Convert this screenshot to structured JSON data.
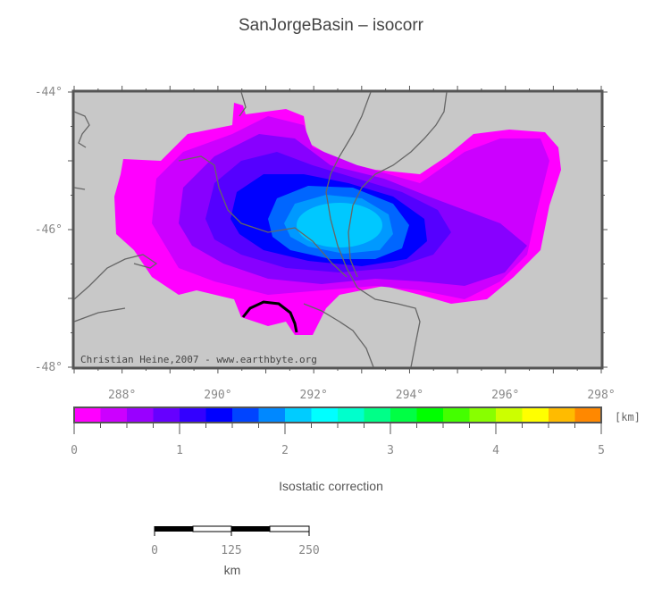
{
  "title": "SanJorgeBasin – isocorr",
  "credit": "Christian Heine,2007 - www.earthbyte.org",
  "map": {
    "lon_ticks": [
      "288°",
      "290°",
      "292°",
      "294°",
      "296°",
      "298°"
    ],
    "lat_ticks": [
      "-44°",
      "-46°",
      "-48°"
    ]
  },
  "colorbar": {
    "unit": "[km]",
    "label": "Isostatic correction",
    "tick_labels": [
      "0",
      "1",
      "2",
      "3",
      "4",
      "5"
    ],
    "range": [
      0,
      5
    ],
    "step": 0.25,
    "colors": [
      "#ff00ff",
      "#cc00ff",
      "#9900ff",
      "#6600ff",
      "#3300ff",
      "#0000ff",
      "#0044ff",
      "#0088ff",
      "#00ccff",
      "#00ffff",
      "#00ffcc",
      "#00ff88",
      "#00ff44",
      "#00ff00",
      "#44ff00",
      "#88ff00",
      "#ccff00",
      "#ffff00",
      "#ffbb00",
      "#ff8800",
      "#ff4400",
      "#ff0000"
    ]
  },
  "scalebar": {
    "tick_labels": [
      "0",
      "125",
      "250"
    ],
    "unit": "km"
  }
}
